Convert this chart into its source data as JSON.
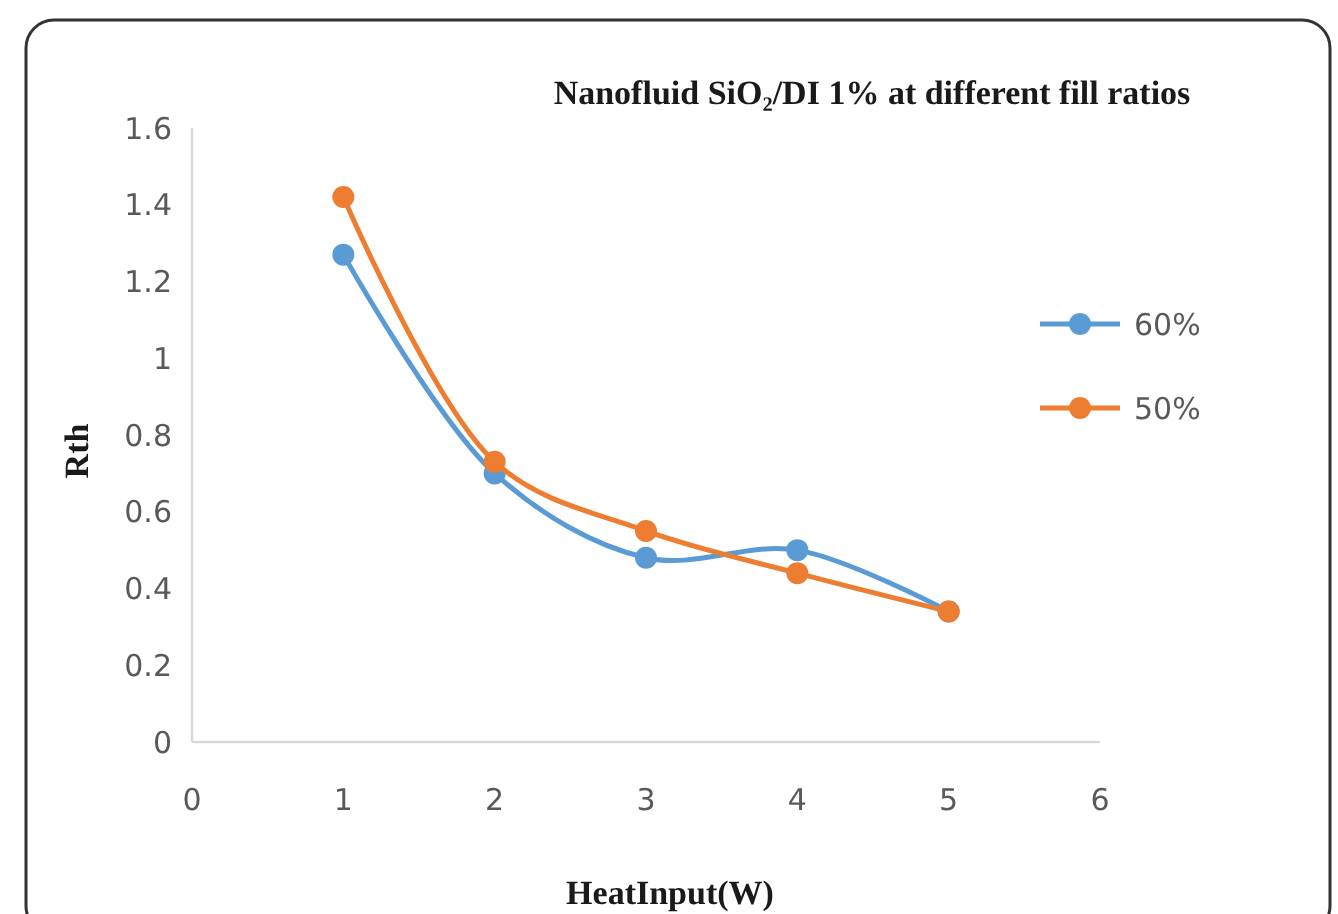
{
  "chart_data": {
    "type": "line",
    "title": "Nanofluid SiO₂/DI 1% at different fill ratios",
    "xlabel": "HeatInput(W)",
    "ylabel": "Rth",
    "x": [
      1,
      2,
      3,
      4,
      5
    ],
    "series": [
      {
        "name": "60%",
        "color": "#5b9bd5",
        "values": [
          1.27,
          0.7,
          0.48,
          0.5,
          0.34
        ]
      },
      {
        "name": "50%",
        "color": "#ed7d31",
        "values": [
          1.42,
          0.73,
          0.55,
          0.44,
          0.34
        ]
      }
    ],
    "xlim": [
      0,
      6
    ],
    "xticks": [
      0,
      1,
      2,
      3,
      4,
      5,
      6
    ],
    "ylim": [
      0,
      1.6
    ],
    "yticks": [
      0,
      0.2,
      0.4,
      0.6,
      0.8,
      1,
      1.2,
      1.4,
      1.6
    ],
    "grid": false,
    "legend": "right",
    "marker": "circle",
    "line_style": "solid"
  }
}
